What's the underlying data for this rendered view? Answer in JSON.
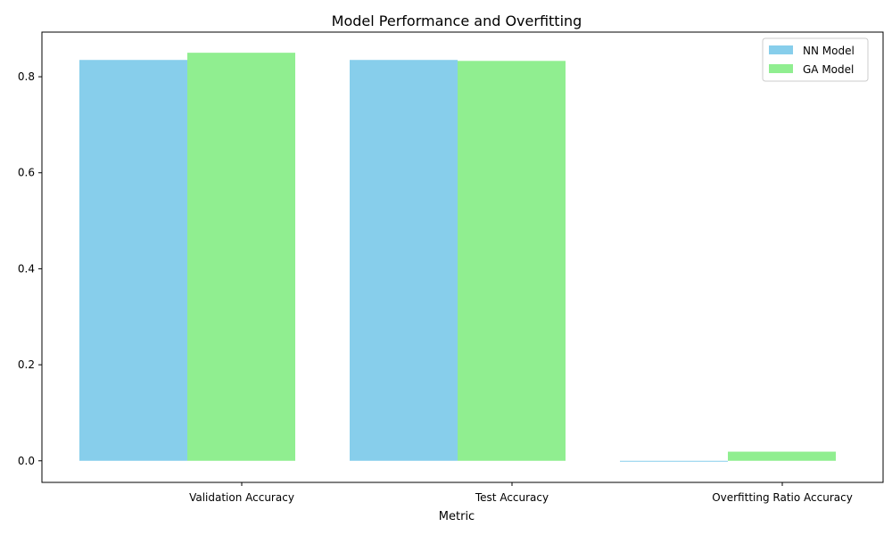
{
  "chart_data": {
    "type": "bar",
    "title": "Model Performance and Overfitting",
    "xlabel": "Metric",
    "ylabel": "",
    "categories": [
      "Validation Accuracy",
      "Test Accuracy",
      "Overfitting Ratio Accuracy"
    ],
    "series": [
      {
        "name": "NN Model",
        "color": "#87CEEB",
        "values": [
          0.835,
          0.835,
          -0.001
        ]
      },
      {
        "name": "GA Model",
        "color": "#90EE90",
        "values": [
          0.85,
          0.833,
          0.019
        ]
      }
    ],
    "ylim": [
      -0.045,
      0.893
    ],
    "yticks": [
      "0.0",
      "0.2",
      "0.4",
      "0.6",
      "0.8"
    ],
    "grid": false,
    "legend_position": "top-right"
  }
}
